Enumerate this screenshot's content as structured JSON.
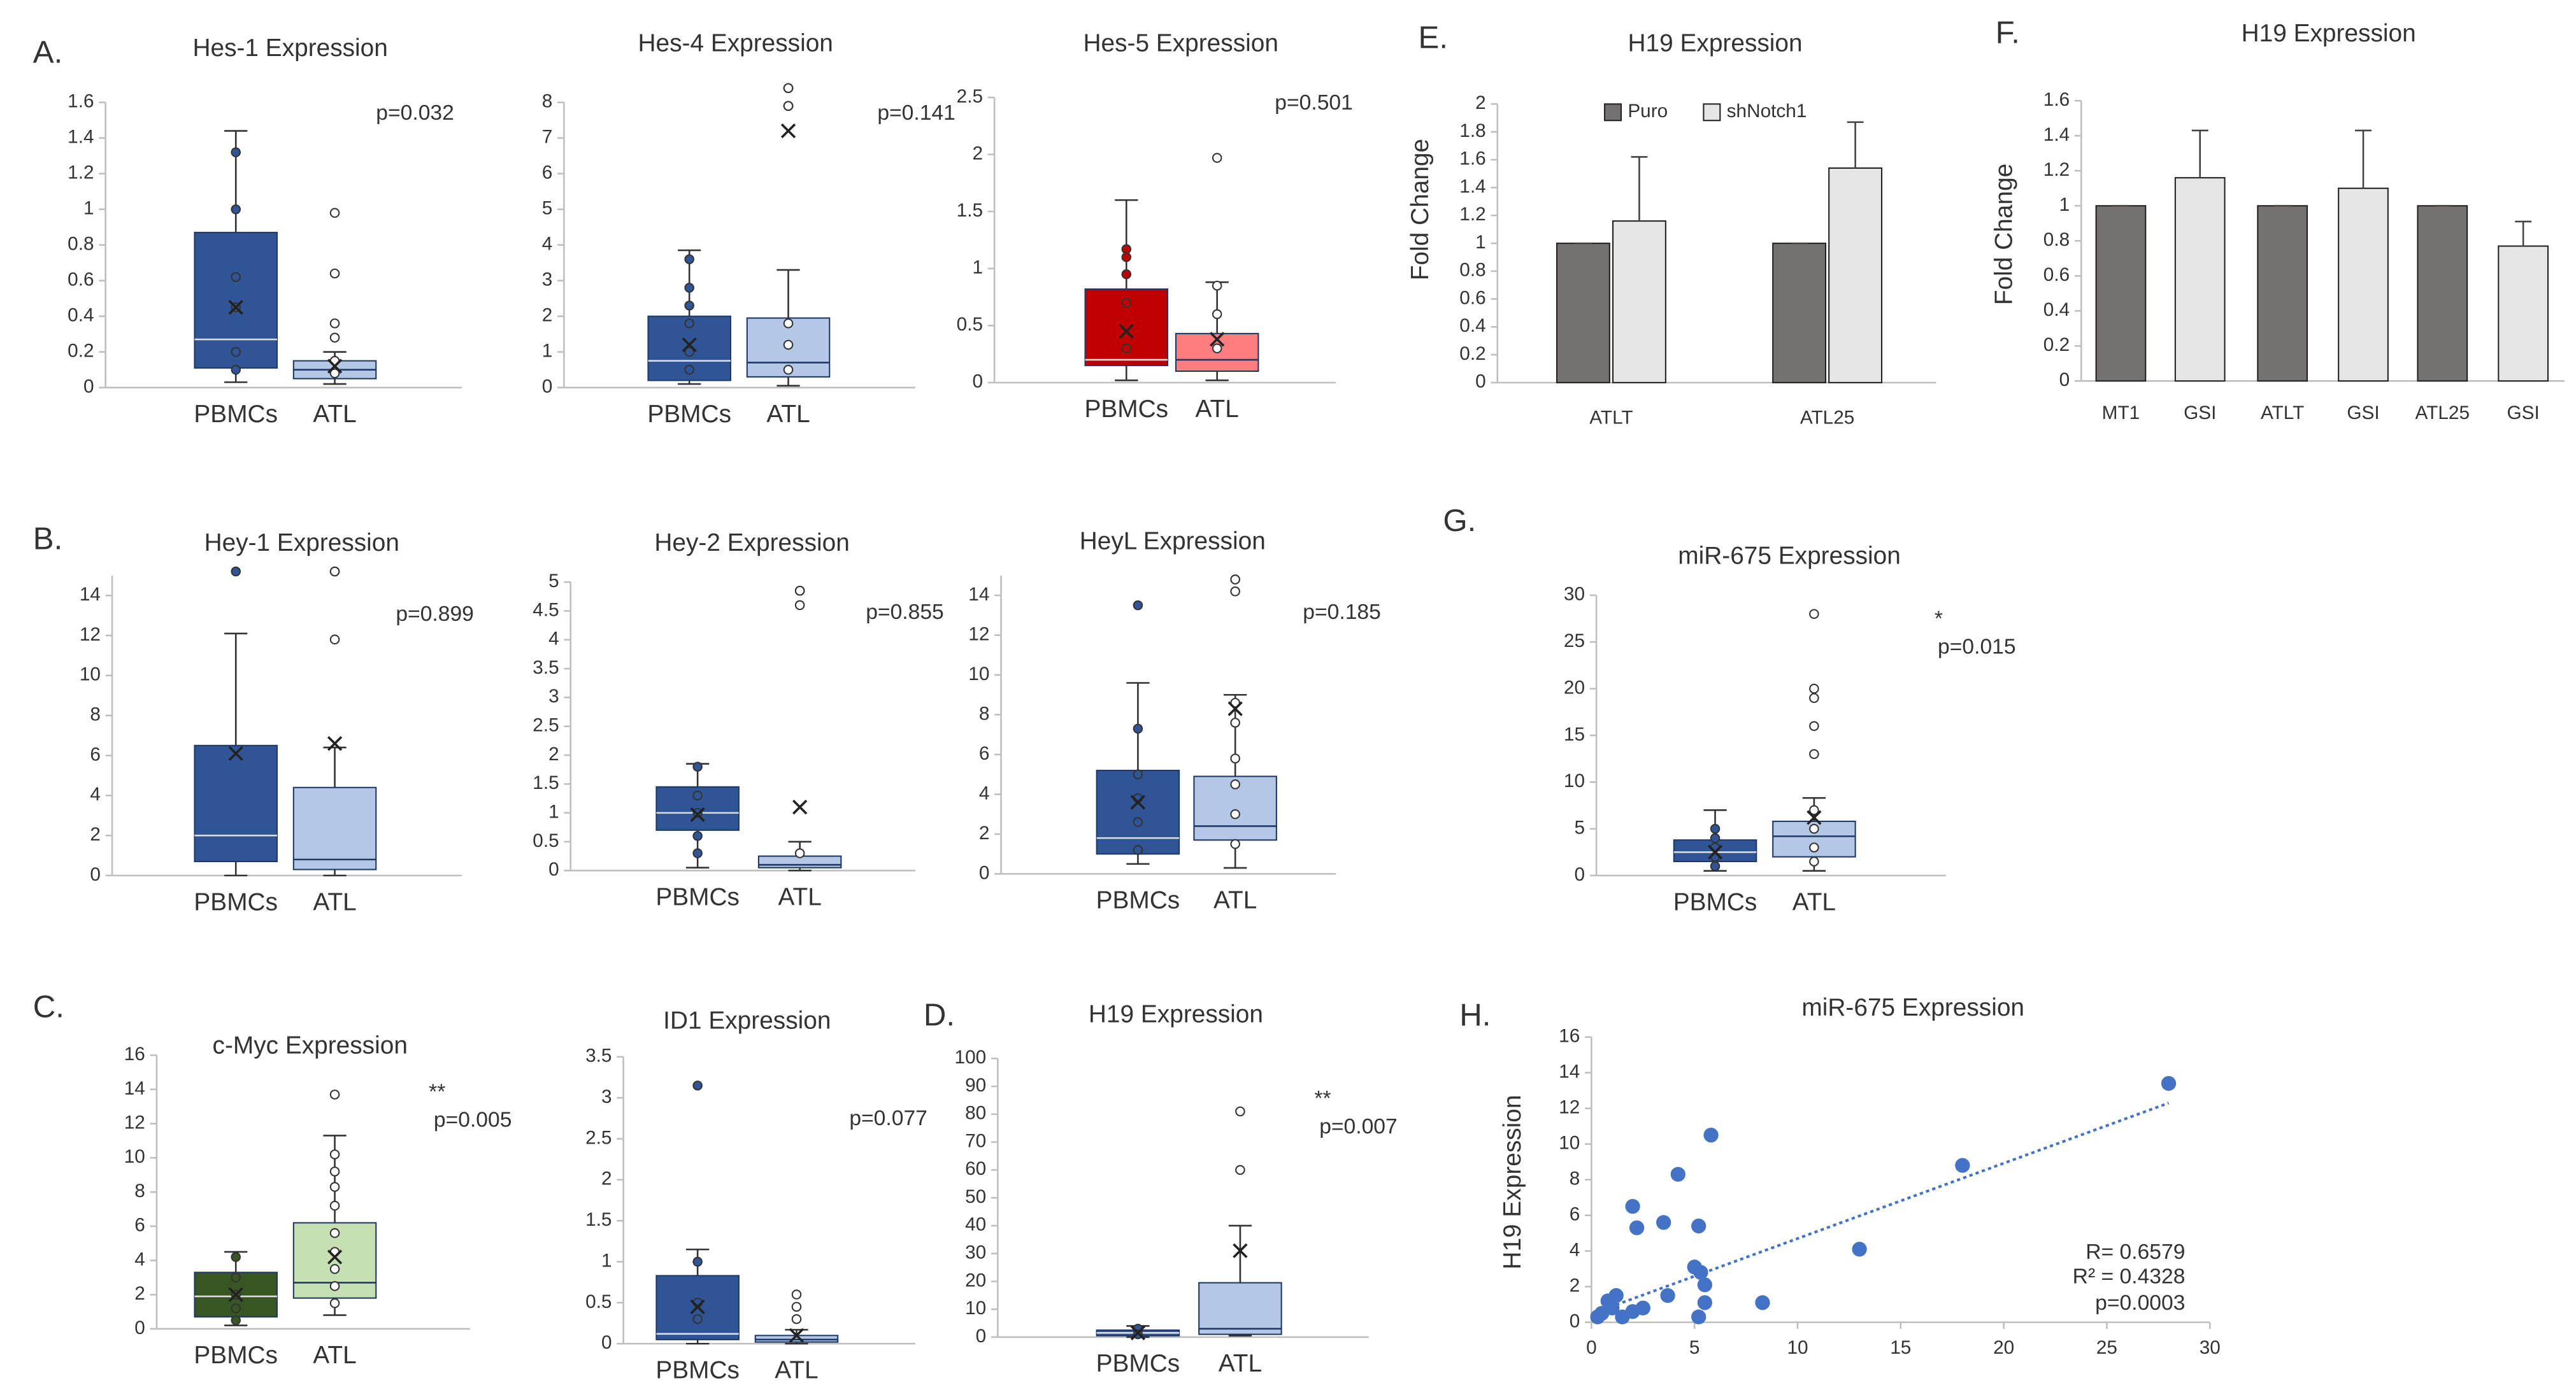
{
  "chart_data": [
    {
      "type": "box",
      "panel": "A.",
      "title": "Hes-1 Expression",
      "categories": [
        "PBMCs",
        "ATL"
      ],
      "ylim": [
        0,
        1.6
      ],
      "yticks": [
        0,
        0.2,
        0.4,
        0.6,
        0.8,
        1,
        1.2,
        1.4,
        1.6
      ],
      "annotations": [
        "p=0.032"
      ],
      "boxes": [
        {
          "color": "#2f5597",
          "min": 0.03,
          "q1": 0.11,
          "median": 0.27,
          "q3": 0.87,
          "max": 1.44,
          "mean": 0.45,
          "points": [
            1.32,
            1.0,
            0.62,
            0.45,
            0.2,
            0.1
          ]
        },
        {
          "color": "#b4c7e7",
          "min": 0.02,
          "q1": 0.05,
          "median": 0.1,
          "q3": 0.15,
          "max": 0.2,
          "mean": 0.12,
          "points": [
            0.98,
            0.64,
            0.36,
            0.28,
            0.15,
            0.08
          ]
        }
      ]
    },
    {
      "type": "box",
      "title": "Hes-4 Expression",
      "categories": [
        "PBMCs",
        "ATL"
      ],
      "ylim": [
        0,
        8
      ],
      "yticks": [
        0,
        1,
        2,
        3,
        4,
        5,
        6,
        7,
        8
      ],
      "annotations": [
        "p=0.141"
      ],
      "boxes": [
        {
          "color": "#2f5597",
          "min": 0.1,
          "q1": 0.2,
          "median": 0.75,
          "q3": 2.0,
          "max": 3.85,
          "mean": 1.2,
          "points": [
            3.6,
            2.8,
            2.3,
            1.8,
            1.0,
            0.5
          ]
        },
        {
          "color": "#b4c7e7",
          "min": 0.05,
          "q1": 0.3,
          "median": 0.7,
          "q3": 1.95,
          "max": 3.3,
          "mean": 7.2,
          "points": [
            8.4,
            8.4,
            8.4,
            7.9,
            7.9,
            7.9,
            1.8,
            1.2,
            0.5
          ]
        }
      ]
    },
    {
      "type": "box",
      "title": "Hes-5 Expression",
      "categories": [
        "PBMCs",
        "ATL"
      ],
      "ylim": [
        0,
        2.5
      ],
      "yticks": [
        0,
        0.5,
        1,
        1.5,
        2,
        2.5
      ],
      "annotations": [
        "p=0.501"
      ],
      "boxes": [
        {
          "color": "#c00000",
          "min": 0.02,
          "q1": 0.15,
          "median": 0.2,
          "q3": 0.82,
          "max": 1.6,
          "mean": 0.45,
          "points": [
            1.17,
            1.1,
            0.95,
            0.7,
            0.3
          ]
        },
        {
          "color": "#ff7c80",
          "min": 0.02,
          "q1": 0.1,
          "median": 0.2,
          "q3": 0.43,
          "max": 0.88,
          "mean": 0.38,
          "points": [
            1.97,
            0.85,
            0.6,
            0.3
          ]
        }
      ]
    },
    {
      "type": "box",
      "panel": "B.",
      "title": "Hey-1 Expression",
      "categories": [
        "PBMCs",
        "ATL"
      ],
      "ylim": [
        0,
        15
      ],
      "yticks": [
        0,
        2,
        4,
        6,
        8,
        10,
        12,
        14
      ],
      "annotations": [
        "p=0.899"
      ],
      "boxes": [
        {
          "color": "#2f5597",
          "min": 0,
          "q1": 0.7,
          "median": 2.0,
          "q3": 6.5,
          "max": 12.1,
          "mean": 6.1,
          "points": [
            15.2
          ]
        },
        {
          "color": "#b4c7e7",
          "min": 0,
          "q1": 0.3,
          "median": 0.8,
          "q3": 4.4,
          "max": 6.4,
          "mean": 6.6,
          "points": [
            15.2,
            15.2,
            11.8
          ]
        }
      ]
    },
    {
      "type": "box",
      "title": "Hey-2 Expression",
      "categories": [
        "PBMCs",
        "ATL"
      ],
      "ylim": [
        0,
        5
      ],
      "yticks": [
        0,
        0.5,
        1,
        1.5,
        2,
        2.5,
        3,
        3.5,
        4,
        4.5,
        5
      ],
      "annotations": [
        "p=0.855"
      ],
      "boxes": [
        {
          "color": "#2f5597",
          "min": 0.05,
          "q1": 0.7,
          "median": 1.0,
          "q3": 1.45,
          "max": 1.85,
          "mean": 0.97,
          "points": [
            1.8,
            1.3,
            1.0,
            0.6,
            0.3
          ]
        },
        {
          "color": "#b4c7e7",
          "min": 0,
          "q1": 0.05,
          "median": 0.1,
          "q3": 0.25,
          "max": 0.5,
          "mean": 1.1,
          "points": [
            4.85,
            4.85,
            4.85,
            4.6,
            0.3
          ]
        }
      ]
    },
    {
      "type": "box",
      "title": "HeyL Expression",
      "categories": [
        "PBMCs",
        "ATL"
      ],
      "ylim": [
        0,
        15
      ],
      "yticks": [
        0,
        2,
        4,
        6,
        8,
        10,
        12,
        14
      ],
      "annotations": [
        "p=0.185"
      ],
      "boxes": [
        {
          "color": "#2f5597",
          "min": 0.5,
          "q1": 1.0,
          "median": 1.8,
          "q3": 5.2,
          "max": 9.6,
          "mean": 3.6,
          "points": [
            13.5,
            7.3,
            5,
            3.8,
            2.6,
            1.2
          ]
        },
        {
          "color": "#b4c7e7",
          "min": 0.3,
          "q1": 1.7,
          "median": 2.4,
          "q3": 4.9,
          "max": 9.0,
          "mean": 8.3,
          "points": [
            14.8,
            14.8,
            14.2,
            8.6,
            7.6,
            5.8,
            4.5,
            3,
            1.5
          ]
        }
      ]
    },
    {
      "type": "box",
      "panel": "C.",
      "title": "c-Myc Expression",
      "categories": [
        "PBMCs",
        "ATL"
      ],
      "ylim": [
        0,
        16
      ],
      "yticks": [
        0,
        2,
        4,
        6,
        8,
        10,
        12,
        14,
        16
      ],
      "annotations": [
        "**",
        "p=0.005"
      ],
      "boxes": [
        {
          "color": "#375623",
          "min": 0.2,
          "q1": 0.7,
          "median": 1.9,
          "q3": 3.3,
          "max": 4.5,
          "mean": 2.0,
          "points": [
            4.2,
            3,
            2,
            1.2,
            0.5
          ]
        },
        {
          "color": "#c6e0b4",
          "min": 0.8,
          "q1": 1.8,
          "median": 2.7,
          "q3": 6.2,
          "max": 11.3,
          "mean": 4.2,
          "points": [
            13.7,
            10.2,
            9.2,
            8.3,
            7.2,
            5.6,
            4.5,
            3.5,
            2.5,
            1.5
          ]
        }
      ]
    },
    {
      "type": "box",
      "title": "ID1 Expression",
      "categories": [
        "PBMCs",
        "ATL"
      ],
      "ylim": [
        0,
        3.5
      ],
      "yticks": [
        0,
        0.5,
        1,
        1.5,
        2,
        2.5,
        3,
        3.5
      ],
      "annotations": [
        "p=0.077"
      ],
      "boxes": [
        {
          "color": "#2f5597",
          "min": 0,
          "q1": 0.05,
          "median": 0.12,
          "q3": 0.83,
          "max": 1.15,
          "mean": 0.45,
          "points": [
            3.15,
            1.0,
            0.5,
            0.3
          ]
        },
        {
          "color": "#b4c7e7",
          "min": 0,
          "q1": 0.02,
          "median": 0.05,
          "q3": 0.1,
          "max": 0.17,
          "mean": 0.1,
          "points": [
            0.6,
            0.45,
            0.3
          ]
        }
      ]
    },
    {
      "type": "box",
      "panel": "D.",
      "title": "H19 Expression",
      "categories": [
        "PBMCs",
        "ATL"
      ],
      "ylim": [
        0,
        100
      ],
      "yticks": [
        0,
        10,
        20,
        30,
        40,
        50,
        60,
        70,
        80,
        90,
        100
      ],
      "annotations": [
        "**",
        "p=0.007"
      ],
      "boxes": [
        {
          "color": "#2f5597",
          "min": 0,
          "q1": 0.5,
          "median": 1.5,
          "q3": 2.5,
          "max": 4,
          "mean": 1.5,
          "points": [
            3,
            1
          ]
        },
        {
          "color": "#b4c7e7",
          "min": 0.5,
          "q1": 1,
          "median": 3,
          "q3": 19.5,
          "max": 40,
          "mean": 31,
          "points": [
            81,
            60
          ]
        }
      ]
    },
    {
      "type": "bar",
      "panel": "E.",
      "title": "H19 Expression",
      "ylabel": "Fold Change",
      "categories": [
        "ATLT",
        "ATL25"
      ],
      "ylim": [
        0,
        2
      ],
      "yticks": [
        0,
        0.2,
        0.4,
        0.6,
        0.8,
        1,
        1.2,
        1.4,
        1.6,
        1.8,
        2
      ],
      "legend": "top-left",
      "series": [
        {
          "name": "Puro",
          "color": "#767171",
          "values": [
            1,
            1
          ],
          "errors": [
            0,
            0
          ]
        },
        {
          "name": "shNotch1",
          "color": "#e7e6e6",
          "values": [
            1.16,
            1.54
          ],
          "errors": [
            0.46,
            0.33
          ]
        }
      ]
    },
    {
      "type": "bar",
      "panel": "F.",
      "title": "H19 Expression",
      "ylabel": "Fold Change",
      "categories": [
        "MT1",
        "GSI",
        "ATLT",
        "GSI",
        "ATL25",
        "GSI"
      ],
      "ylim": [
        0,
        1.6
      ],
      "yticks": [
        0,
        0.2,
        0.4,
        0.6,
        0.8,
        1,
        1.2,
        1.4,
        1.6
      ],
      "series": [
        {
          "colors": [
            "#767171",
            "#e7e6e6",
            "#767171",
            "#e7e6e6",
            "#767171",
            "#e7e6e6"
          ],
          "values": [
            1,
            1.16,
            1,
            1.1,
            1,
            0.77
          ],
          "errors": [
            0,
            0.27,
            0,
            0.33,
            0,
            0.14
          ]
        }
      ]
    },
    {
      "type": "box",
      "panel": "G.",
      "title": "miR-675 Expression",
      "categories": [
        "PBMCs",
        "ATL"
      ],
      "ylim": [
        0,
        30
      ],
      "yticks": [
        0,
        5,
        10,
        15,
        20,
        25,
        30
      ],
      "annotations": [
        "*",
        "p=0.015"
      ],
      "boxes": [
        {
          "color": "#2f5597",
          "min": 0.5,
          "q1": 1.5,
          "median": 2.5,
          "q3": 3.8,
          "max": 7,
          "mean": 2.5,
          "points": [
            5,
            4,
            3,
            2,
            1
          ]
        },
        {
          "color": "#b4c7e7",
          "min": 0.5,
          "q1": 2,
          "median": 4.2,
          "q3": 5.8,
          "max": 8.3,
          "mean": 6.2,
          "points": [
            28,
            20,
            19,
            16,
            13,
            7,
            5,
            3,
            1.5
          ]
        }
      ]
    },
    {
      "type": "scatter",
      "panel": "H.",
      "title": "miR-675 Expression",
      "ylabel": "H19 Expression",
      "color": "#4472c4",
      "xlim": [
        0,
        30
      ],
      "xticks": [
        0,
        5,
        10,
        15,
        20,
        25,
        30
      ],
      "ylim": [
        0,
        16
      ],
      "yticks": [
        0,
        2,
        4,
        6,
        8,
        10,
        12,
        14,
        16
      ],
      "x": [
        0.3,
        0.5,
        0.8,
        1,
        1.2,
        1.5,
        2,
        2.2,
        2,
        2.5,
        3.5,
        3.7,
        4.2,
        5,
        5.2,
        5.3,
        5.5,
        5.5,
        5.8,
        5.2,
        8.3,
        13,
        18,
        28
      ],
      "y": [
        0.3,
        0.5,
        1.2,
        0.8,
        1.5,
        0.3,
        6.5,
        5.3,
        0.6,
        0.8,
        5.6,
        1.5,
        8.3,
        3.1,
        5.4,
        2.8,
        2.1,
        1.1,
        10.5,
        0.3,
        1.1,
        4.1,
        8.8,
        13.4
      ],
      "trendline": {
        "x": [
          0.3,
          28
        ],
        "y": [
          0.6,
          12.3
        ]
      },
      "annotations": [
        "R= 0.6579",
        "R² = 0.4328",
        "p=0.0003"
      ]
    }
  ]
}
